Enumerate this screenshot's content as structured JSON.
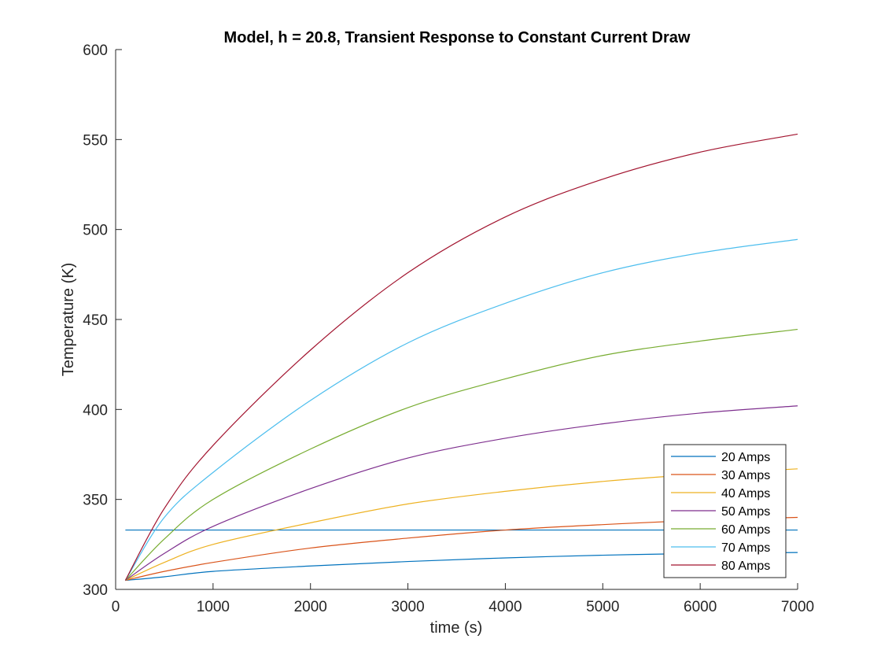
{
  "chart_data": {
    "type": "line",
    "title": "Model, h = 20.8, Transient Response to Constant Current Draw",
    "xlabel": "time (s)",
    "ylabel": "Temperature (K)",
    "xlim": [
      0,
      7000
    ],
    "ylim": [
      300,
      600
    ],
    "xticks": [
      0,
      1000,
      2000,
      3000,
      4000,
      5000,
      6000,
      7000
    ],
    "yticks": [
      300,
      350,
      400,
      450,
      500,
      550,
      600
    ],
    "grid": false,
    "legend_position": "bottom-right",
    "reference_line": {
      "y": 333,
      "x": [
        100,
        7000
      ],
      "color": "#0072BD"
    },
    "series": [
      {
        "name": "20 Amps",
        "color": "#0072BD",
        "x": [
          100,
          500,
          1000,
          2000,
          3000,
          4000,
          5000,
          6000,
          7000
        ],
        "y": [
          305,
          307,
          310,
          313,
          315.5,
          317.5,
          319,
          320,
          320.5
        ]
      },
      {
        "name": "30 Amps",
        "color": "#D95319",
        "x": [
          100,
          500,
          1000,
          2000,
          3000,
          4000,
          5000,
          6000,
          7000
        ],
        "y": [
          305,
          310,
          315,
          323,
          328.5,
          333,
          336,
          338.5,
          340
        ]
      },
      {
        "name": "40 Amps",
        "color": "#EDB120",
        "x": [
          100,
          500,
          1000,
          2000,
          3000,
          4000,
          5000,
          6000,
          7000
        ],
        "y": [
          305,
          315,
          325,
          337,
          347.5,
          354.5,
          360,
          364,
          367
        ]
      },
      {
        "name": "50 Amps",
        "color": "#7E2F8E",
        "x": [
          100,
          500,
          1000,
          2000,
          3000,
          4000,
          5000,
          6000,
          7000
        ],
        "y": [
          305,
          320,
          335,
          356,
          373,
          384,
          392,
          398,
          402
        ]
      },
      {
        "name": "60 Amps",
        "color": "#77AC30",
        "x": [
          100,
          500,
          1000,
          2000,
          3000,
          4000,
          5000,
          6000,
          7000
        ],
        "y": [
          305,
          328,
          350,
          378,
          401,
          417,
          430,
          438,
          444.5
        ]
      },
      {
        "name": "70 Amps",
        "color": "#4DBEEE",
        "x": [
          100,
          500,
          1000,
          2000,
          3000,
          4000,
          5000,
          6000,
          7000
        ],
        "y": [
          305,
          340,
          365,
          405,
          437,
          459,
          476,
          487,
          494.5
        ]
      },
      {
        "name": "80 Amps",
        "color": "#A2142F",
        "x": [
          100,
          500,
          1000,
          2000,
          3000,
          4000,
          5000,
          6000,
          7000
        ],
        "y": [
          305,
          345,
          380,
          433,
          476,
          507,
          528,
          543,
          553
        ]
      }
    ]
  }
}
